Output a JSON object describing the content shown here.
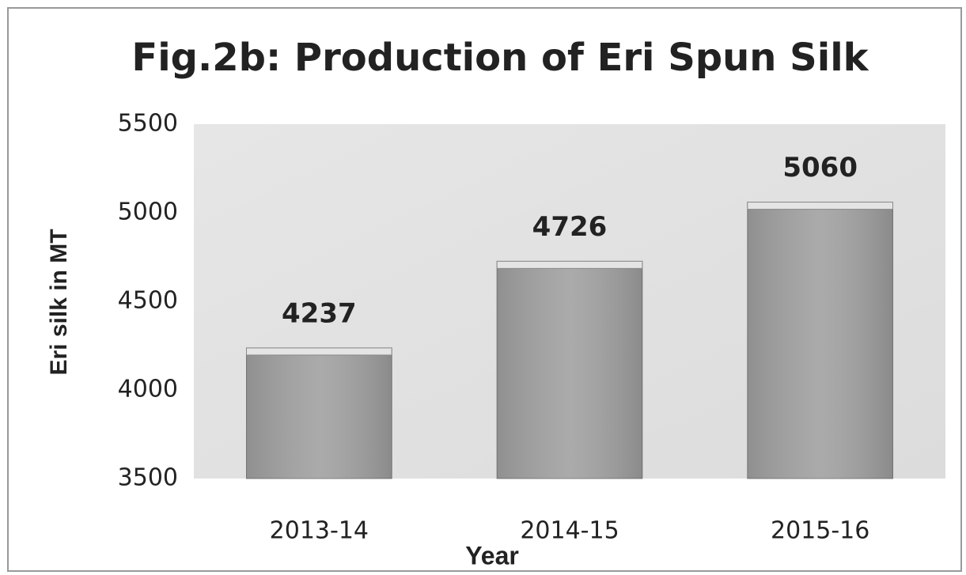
{
  "chart_data": {
    "type": "bar",
    "title": "Fig.2b: Production of Eri Spun Silk",
    "xlabel": "Year",
    "ylabel": "Eri silk in MT",
    "categories": [
      "2013-14",
      "2014-15",
      "2015-16"
    ],
    "values": [
      4237,
      4726,
      5060
    ],
    "color": "#a3a3a3",
    "ylim": [
      3500,
      5500
    ],
    "yticks": [
      3500,
      4000,
      4500,
      5000,
      5500
    ],
    "grid": false
  }
}
